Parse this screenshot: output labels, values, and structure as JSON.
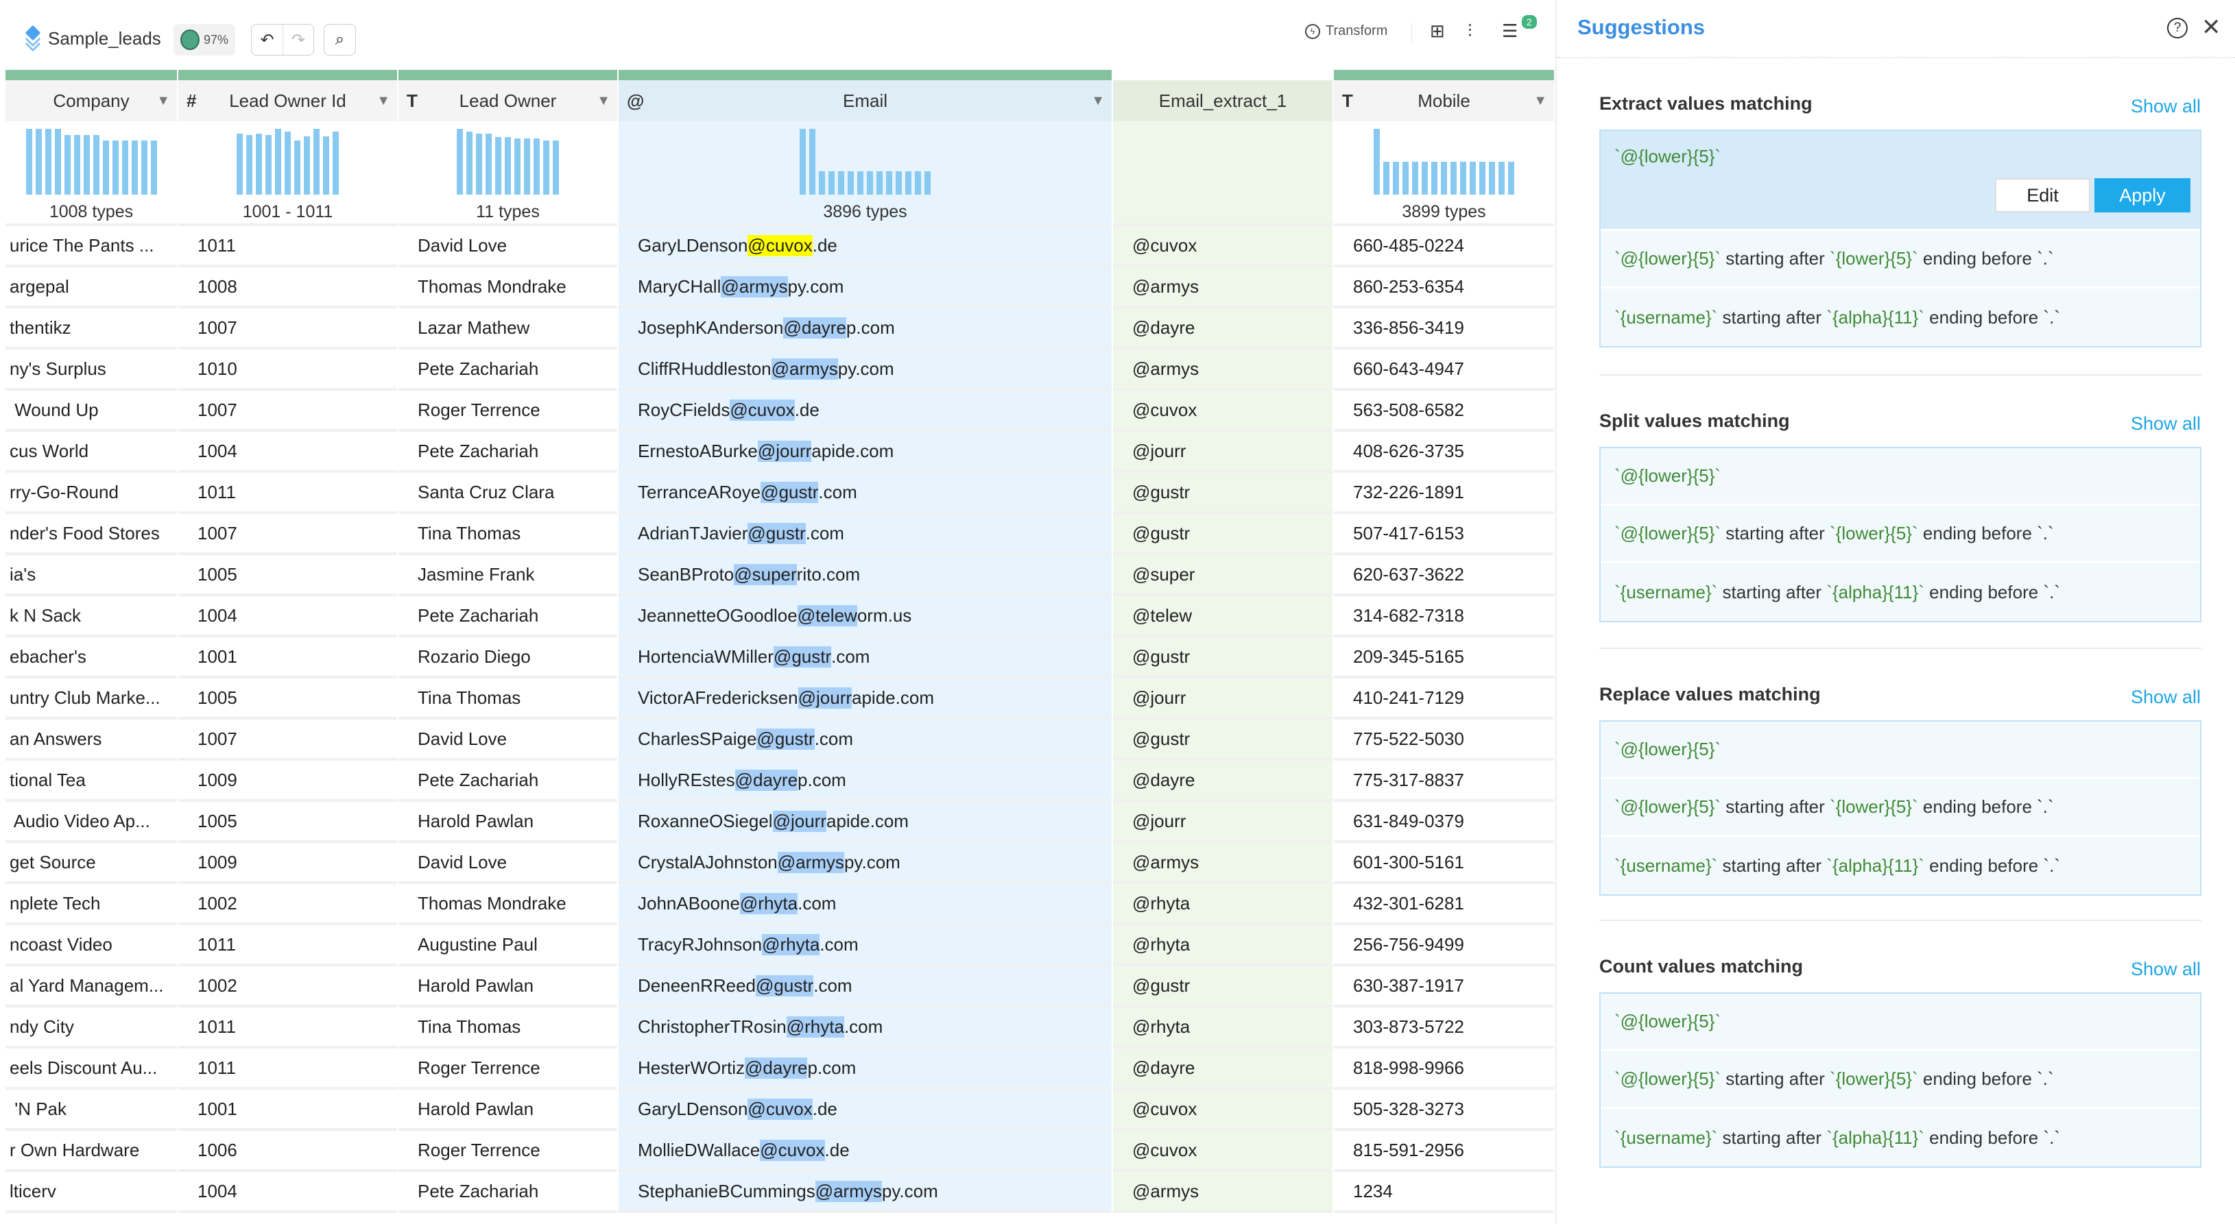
{
  "toolbar": {
    "dataset_name": "Sample_leads",
    "quality_percent": "97%",
    "undo_icon": "↶",
    "redo_icon": "↷",
    "search_icon": "⌕",
    "transform_label": "Transform",
    "rules_badge_count": "2"
  },
  "colors": {
    "accent": "#3c8ee0",
    "apply": "#1eaaea",
    "header_bar": "#84c29e",
    "match_highlight": "#a8cff8",
    "selected_highlight": "#ffff00",
    "histogram": "#87c9f1",
    "pattern_text": "#3f8a35"
  },
  "columns": [
    {
      "name": "Company",
      "type_icon": "",
      "summary": "1008 types",
      "histogram": [
        1,
        1,
        1,
        1,
        0.91,
        0.91,
        0.91,
        0.91,
        0.82,
        0.82,
        0.82,
        0.82,
        0.82,
        0.82
      ]
    },
    {
      "name": "Lead Owner Id",
      "type_icon": "#",
      "summary": "1001 - 1011",
      "histogram": [
        0.93,
        0.91,
        0.93,
        0.91,
        1,
        0.96,
        0.82,
        0.89,
        1,
        0.89,
        0.96
      ]
    },
    {
      "name": "Lead Owner",
      "type_icon": "T",
      "summary": "11 types",
      "histogram": [
        1,
        0.96,
        0.93,
        0.93,
        0.87,
        0.87,
        0.85,
        0.85,
        0.85,
        0.82,
        0.82
      ]
    },
    {
      "name": "Email",
      "type_icon": "@",
      "summary": "3896 types",
      "histogram": [
        1,
        1,
        0.35,
        0.35,
        0.35,
        0.35,
        0.35,
        0.35,
        0.35,
        0.35,
        0.35,
        0.35,
        0.35,
        0.35
      ]
    },
    {
      "name": "Email_extract_1",
      "type_icon": "",
      "summary": "",
      "histogram": []
    },
    {
      "name": "Mobile",
      "type_icon": "T",
      "summary": "3899 types",
      "histogram": [
        1,
        0.5,
        0.5,
        0.5,
        0.5,
        0.5,
        0.5,
        0.5,
        0.5,
        0.5,
        0.5,
        0.5,
        0.5,
        0.5,
        0.5
      ]
    }
  ],
  "selected_row": 0,
  "rows": [
    [
      "urice The Pants ...",
      "1011",
      "David Love",
      "GaryLDenson@cuvox.de",
      "@cuvox",
      "660-485-0224"
    ],
    [
      "argepal",
      "1008",
      "Thomas Mondrake",
      "MaryCHall@armyspy.com",
      "@armys",
      "860-253-6354"
    ],
    [
      "thentikz",
      "1007",
      "Lazar Mathew",
      "JosephKAnderson@dayrep.com",
      "@dayre",
      "336-856-3419"
    ],
    [
      "ny's Surplus",
      "1010",
      "Pete Zachariah",
      "CliffRHuddleston@armyspy.com",
      "@armys",
      "660-643-4947"
    ],
    [
      " Wound Up",
      "1007",
      "Roger Terrence",
      "RoyCFields@cuvox.de",
      "@cuvox",
      "563-508-6582"
    ],
    [
      "cus World",
      "1004",
      "Pete Zachariah",
      "ErnestoABurke@jourrapide.com",
      "@jourr",
      "408-626-3735"
    ],
    [
      "rry-Go-Round",
      "1011",
      "Santa Cruz Clara",
      "TerranceARoye@gustr.com",
      "@gustr",
      "732-226-1891"
    ],
    [
      "nder's Food Stores",
      "1007",
      "Tina Thomas",
      "AdrianTJavier@gustr.com",
      "@gustr",
      "507-417-6153"
    ],
    [
      "ia's",
      "1005",
      "Jasmine Frank",
      "SeanBProto@superrito.com",
      "@super",
      "620-637-3622"
    ],
    [
      "k N Sack",
      "1004",
      "Pete Zachariah",
      "JeannetteOGoodloe@teleworm.us",
      "@telew",
      "314-682-7318"
    ],
    [
      "ebacher's",
      "1001",
      "Rozario Diego",
      "HortenciaWMiller@gustr.com",
      "@gustr",
      "209-345-5165"
    ],
    [
      "untry Club Marke...",
      "1005",
      "Tina Thomas",
      "VictorAFredericksen@jourrapide.com",
      "@jourr",
      "410-241-7129"
    ],
    [
      "an Answers",
      "1007",
      "David Love",
      "CharlesSPaige@gustr.com",
      "@gustr",
      "775-522-5030"
    ],
    [
      "tional Tea",
      "1009",
      "Pete Zachariah",
      "HollyREstes@dayrep.com",
      "@dayre",
      "775-317-8837"
    ],
    [
      " Audio Video Ap...",
      "1005",
      "Harold Pawlan",
      "RoxanneOSiegel@jourrapide.com",
      "@jourr",
      "631-849-0379"
    ],
    [
      "get Source",
      "1009",
      "David Love",
      "CrystalAJohnston@armyspy.com",
      "@armys",
      "601-300-5161"
    ],
    [
      "nplete Tech",
      "1002",
      "Thomas Mondrake",
      "JohnABoone@rhyta.com",
      "@rhyta",
      "432-301-6281"
    ],
    [
      "ncoast Video",
      "1011",
      "Augustine Paul",
      "TracyRJohnson@rhyta.com",
      "@rhyta",
      "256-756-9499"
    ],
    [
      "al Yard Managem...",
      "1002",
      "Harold Pawlan",
      "DeneenRReed@gustr.com",
      "@gustr",
      "630-387-1917"
    ],
    [
      "ndy City",
      "1011",
      "Tina Thomas",
      "ChristopherTRosin@rhyta.com",
      "@rhyta",
      "303-873-5722"
    ],
    [
      "eels Discount Au...",
      "1011",
      "Roger Terrence",
      "HesterWOrtiz@dayrep.com",
      "@dayre",
      "818-998-9966"
    ],
    [
      " 'N Pak",
      "1001",
      "Harold Pawlan",
      "GaryLDenson@cuvox.de",
      "@cuvox",
      "505-328-3273"
    ],
    [
      "r Own Hardware",
      "1006",
      "Roger Terrence",
      "MollieDWallace@cuvox.de",
      "@cuvox",
      "815-591-2956"
    ],
    [
      "lticerv",
      "1004",
      "Pete Zachariah",
      "StephanieBCummings@armyspy.com",
      "@armys",
      "1234"
    ]
  ],
  "suggestions": {
    "title": "Suggestions",
    "help_icon": "?",
    "close_icon": "✕",
    "edit_label": "Edit",
    "apply_label": "Apply",
    "sections": [
      {
        "title": "Extract values matching",
        "show_all": "Show all"
      },
      {
        "title": "Split values matching",
        "show_all": "Show all"
      },
      {
        "title": "Replace values matching",
        "show_all": "Show all"
      },
      {
        "title": "Count values matching",
        "show_all": "Show all"
      }
    ],
    "items": [
      [
        {
          "t": "`@{lower}{5}`",
          "g": true
        }
      ],
      [
        {
          "t": "`@{lower}{5}`",
          "g": true
        },
        {
          "t": " starting after ",
          "g": false
        },
        {
          "t": "`{lower}{5}`",
          "g": true
        },
        {
          "t": " ending before `.`",
          "g": false
        }
      ],
      [
        {
          "t": "`{username}`",
          "g": true
        },
        {
          "t": " starting after ",
          "g": false
        },
        {
          "t": "`{alpha}{11}`",
          "g": true
        },
        {
          "t": " ending before `.`",
          "g": false
        }
      ]
    ]
  }
}
